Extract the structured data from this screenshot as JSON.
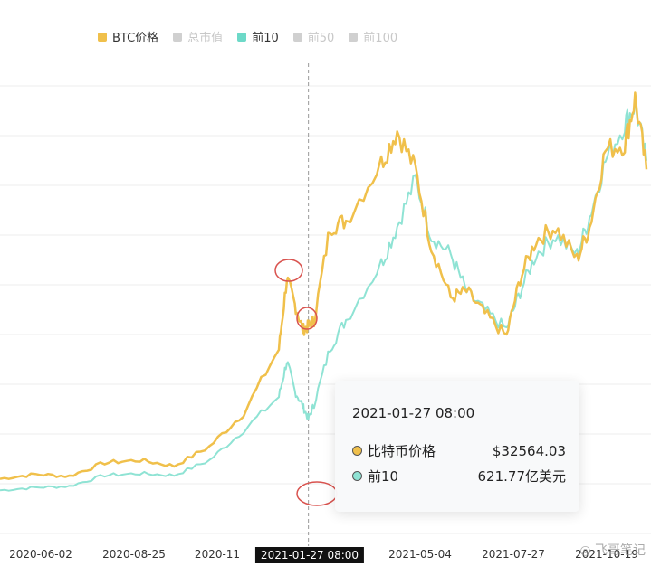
{
  "colors": {
    "btc": "#f0c04b",
    "top10": "#8fe3d4",
    "disabled": "#d0d0d0",
    "annotation": "#d9534f",
    "grid": "#eeeeee"
  },
  "legend": [
    {
      "label": "BTC价格",
      "state": "on",
      "color": "#f0c04b"
    },
    {
      "label": "总市值",
      "state": "off",
      "color": "#d0d0d0"
    },
    {
      "label": "前10",
      "state": "on",
      "color": "#6dd9c8"
    },
    {
      "label": "前50",
      "state": "off",
      "color": "#d0d0d0"
    },
    {
      "label": "前100",
      "state": "off",
      "color": "#d0d0d0"
    }
  ],
  "xaxis": {
    "ticks": [
      "2020-06-02",
      "2020-08-25",
      "2020-11",
      "2021-01-27 08:00",
      "2021-05-04",
      "2021-07-27",
      "2021-10-19"
    ],
    "highlighted": "2021-01-27 08:00"
  },
  "tooltip": {
    "title": "2021-01-27 08:00",
    "rows": [
      {
        "label": "比特币价格",
        "value": "$32564.03",
        "color": "#f0c04b"
      },
      {
        "label": "前10",
        "value": "621.77亿美元",
        "color": "#8fe3d4"
      }
    ]
  },
  "chart_data": {
    "type": "line",
    "x": [
      "2020-05-01",
      "2020-06-01",
      "2020-07-01",
      "2020-08-01",
      "2020-09-01",
      "2020-10-01",
      "2020-11-01",
      "2020-12-01",
      "2021-01-01",
      "2021-01-08",
      "2021-01-15",
      "2021-01-22",
      "2021-01-27",
      "2021-02-01",
      "2021-02-15",
      "2021-03-01",
      "2021-04-01",
      "2021-04-15",
      "2021-05-01",
      "2021-05-15",
      "2021-06-01",
      "2021-06-15",
      "2021-07-01",
      "2021-07-20",
      "2021-08-01",
      "2021-08-15",
      "2021-09-01",
      "2021-09-20",
      "2021-10-01",
      "2021-10-15",
      "2021-11-01",
      "2021-11-10",
      "2021-11-20"
    ],
    "series": [
      {
        "name": "BTC价格",
        "values": [
          8800,
          9500,
          9200,
          11300,
          11700,
          10800,
          13800,
          19000,
          29000,
          40000,
          36000,
          32000,
          32564,
          33500,
          48000,
          49000,
          58000,
          63000,
          57000,
          45000,
          37000,
          38000,
          34500,
          31000,
          40000,
          46000,
          48000,
          43000,
          48000,
          60000,
          61000,
          68000,
          57000
        ]
      },
      {
        "name": "前10",
        "values": [
          240,
          255,
          262,
          320,
          330,
          320,
          400,
          560,
          740,
          930,
          770,
          690,
          621.77,
          700,
          1000,
          1150,
          1450,
          1650,
          1900,
          1600,
          1500,
          1300,
          1200,
          1100,
          1300,
          1500,
          1600,
          1500,
          1700,
          2000,
          2200,
          2300,
          2000
        ]
      }
    ],
    "grid": true,
    "legend_position": "top"
  }
}
